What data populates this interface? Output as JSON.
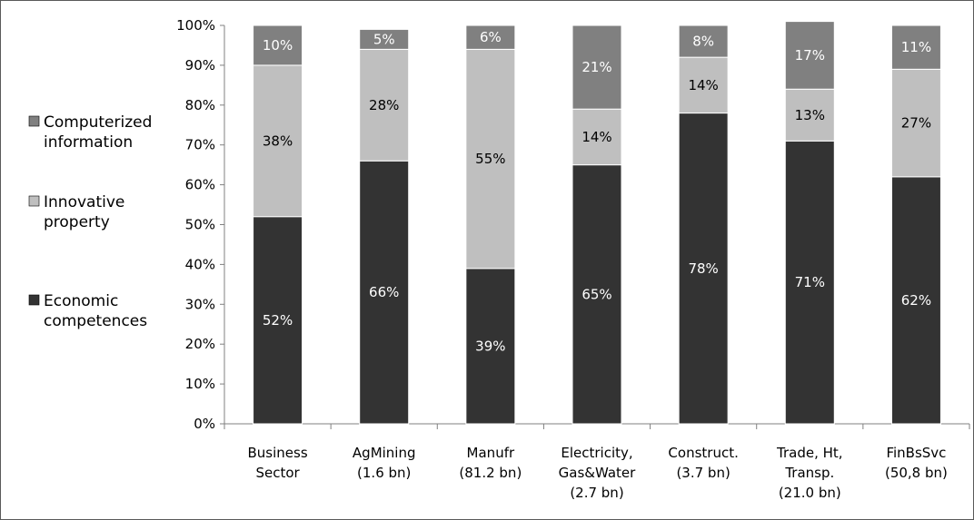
{
  "chart_data": {
    "type": "bar",
    "stacked": true,
    "categories": [
      [
        "Business",
        "Sector"
      ],
      [
        "AgMining",
        "(1.6 bn)"
      ],
      [
        "Manufr",
        "(81.2 bn)"
      ],
      [
        "Electricity,",
        "Gas&Water",
        "(2.7 bn)"
      ],
      [
        "Construct.",
        "(3.7 bn)"
      ],
      [
        "Trade, Ht,",
        "Transp.",
        "(21.0 bn)"
      ],
      [
        "FinBsSvc",
        "(50,8 bn)"
      ]
    ],
    "series": [
      {
        "name": "Economic competences",
        "legend_lines": [
          "Economic",
          "competences"
        ],
        "color": "#333333",
        "label_color": "#ffffff",
        "values": [
          52,
          66,
          39,
          65,
          78,
          71,
          62
        ],
        "labels": [
          "52%",
          "66%",
          "39%",
          "65%",
          "78%",
          "71%",
          "62%"
        ]
      },
      {
        "name": "Innovative property",
        "legend_lines": [
          "Innovative",
          "property"
        ],
        "color": "#bfbfbf",
        "label_color": "#000000",
        "values": [
          38,
          28,
          55,
          14,
          14,
          13,
          27
        ],
        "labels": [
          "38%",
          "28%",
          "55%",
          "14%",
          "14%",
          "13%",
          "27%"
        ]
      },
      {
        "name": "Computerized information",
        "legend_lines": [
          "Computerized",
          "information"
        ],
        "color": "#808080",
        "label_color": "#ffffff",
        "values": [
          10,
          5,
          6,
          21,
          8,
          17,
          11
        ],
        "labels": [
          "10%",
          "5%",
          "6%",
          "21%",
          "8%",
          "17%",
          "11%"
        ]
      }
    ],
    "yticks": [
      "0%",
      "10%",
      "20%",
      "30%",
      "40%",
      "50%",
      "60%",
      "70%",
      "80%",
      "90%",
      "100%"
    ],
    "ylim": [
      0,
      100
    ],
    "legend_position": "left",
    "grid": false
  }
}
